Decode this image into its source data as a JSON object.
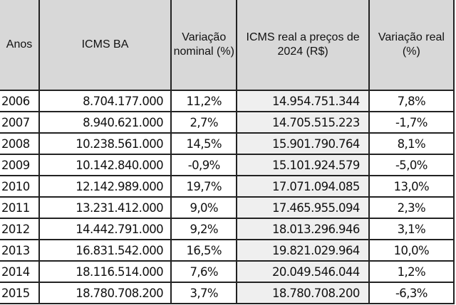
{
  "table": {
    "headers": [
      "Anos",
      "ICMS BA",
      "Variação nominal (%)",
      "ICMS  real  a preços de 2024 (R$)",
      "Variação real (%)"
    ],
    "rows": [
      [
        "2006",
        "8.704.177.000",
        "11,2%",
        "14.954.751.344",
        "7,8%"
      ],
      [
        "2007",
        "8.940.621.000",
        "2,7%",
        "14.705.515.223",
        "-1,7%"
      ],
      [
        "2008",
        "10.238.561.000",
        "14,5%",
        "15.901.790.764",
        "8,1%"
      ],
      [
        "2009",
        "10.142.840.000",
        "-0,9%",
        "15.101.924.579",
        "-5,0%"
      ],
      [
        "2010",
        "12.142.989.000",
        "19,7%",
        "17.071.094.085",
        "13,0%"
      ],
      [
        "2011",
        "13.231.412.000",
        "9,0%",
        "17.465.955.094",
        "2,3%"
      ],
      [
        "2012",
        "14.442.791.000",
        "9,2%",
        "18.013.296.946",
        "3,1%"
      ],
      [
        "2013",
        "16.831.542.000",
        "16,5%",
        "19.821.029.964",
        "10,0%"
      ],
      [
        "2014",
        "18.116.514.000",
        "7,6%",
        "20.049.546.044",
        "1,2%"
      ],
      [
        "2015",
        "18.780.708.200",
        "3,7%",
        "18.780.708.200",
        "-6,3%"
      ]
    ]
  },
  "colors": {
    "header_bg": "#d8d8d8",
    "real_column_bg": "#efefef",
    "border": "#222222"
  }
}
